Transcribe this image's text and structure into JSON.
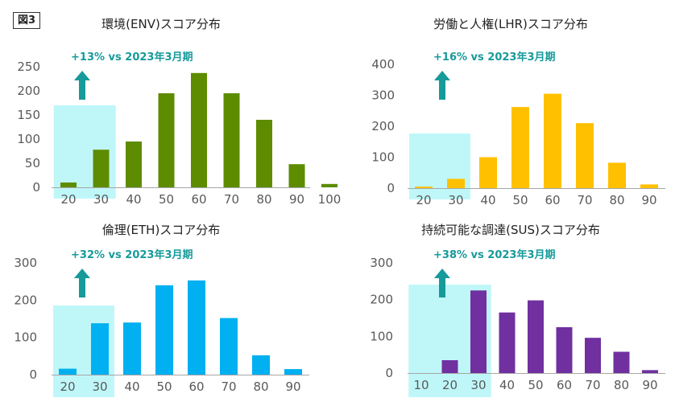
{
  "figure_label": "図3",
  "colors": {
    "highlight": "#bff7f9",
    "arrow": "#179a9a",
    "axis": "#a6a6a6",
    "tick_text": "#595959"
  },
  "chart_data": [
    {
      "type": "bar",
      "title": "環境(ENV)スコア分布",
      "annotation": "+13% vs 2023年3月期",
      "color": "#5e8c00",
      "categories": [
        "20",
        "30",
        "40",
        "50",
        "60",
        "70",
        "80",
        "90",
        "100"
      ],
      "values": [
        10,
        78,
        95,
        195,
        237,
        195,
        140,
        48,
        7
      ],
      "yticks": [
        "0",
        "50",
        "100",
        "150",
        "200",
        "250"
      ],
      "ylim": [
        0,
        250
      ],
      "highlight_categories": [
        "20",
        "30"
      ]
    },
    {
      "type": "bar",
      "title": "労働と人権(LHR)スコア分布",
      "annotation": "+16% vs 2023年3月期",
      "color": "#ffc000",
      "categories": [
        "20",
        "30",
        "40",
        "50",
        "60",
        "70",
        "80",
        "90"
      ],
      "values": [
        5,
        30,
        100,
        262,
        305,
        210,
        82,
        12
      ],
      "yticks": [
        "0",
        "100",
        "200",
        "300",
        "400"
      ],
      "ylim": [
        0,
        400
      ],
      "highlight_categories": [
        "20",
        "30"
      ]
    },
    {
      "type": "bar",
      "title": "倫理(ETH)スコア分布",
      "annotation": "+32% vs 2023年3月期",
      "color": "#00b0f0",
      "categories": [
        "20",
        "30",
        "40",
        "50",
        "60",
        "70",
        "80",
        "90"
      ],
      "values": [
        16,
        138,
        140,
        240,
        253,
        152,
        52,
        15
      ],
      "yticks": [
        "0",
        "100",
        "200",
        "300"
      ],
      "ylim": [
        0,
        300
      ],
      "highlight_categories": [
        "20",
        "30"
      ]
    },
    {
      "type": "bar",
      "title": "持続可能な調達(SUS)スコア分布",
      "annotation": "+38% vs 2023年3月期",
      "color": "#7030a0",
      "categories": [
        "10",
        "20",
        "30",
        "40",
        "50",
        "60",
        "70",
        "80",
        "90"
      ],
      "values": [
        0,
        35,
        225,
        165,
        198,
        125,
        96,
        58,
        8
      ],
      "yticks": [
        "0",
        "100",
        "200",
        "300"
      ],
      "ylim": [
        0,
        300
      ],
      "highlight_categories": [
        "10",
        "20",
        "30"
      ]
    }
  ]
}
